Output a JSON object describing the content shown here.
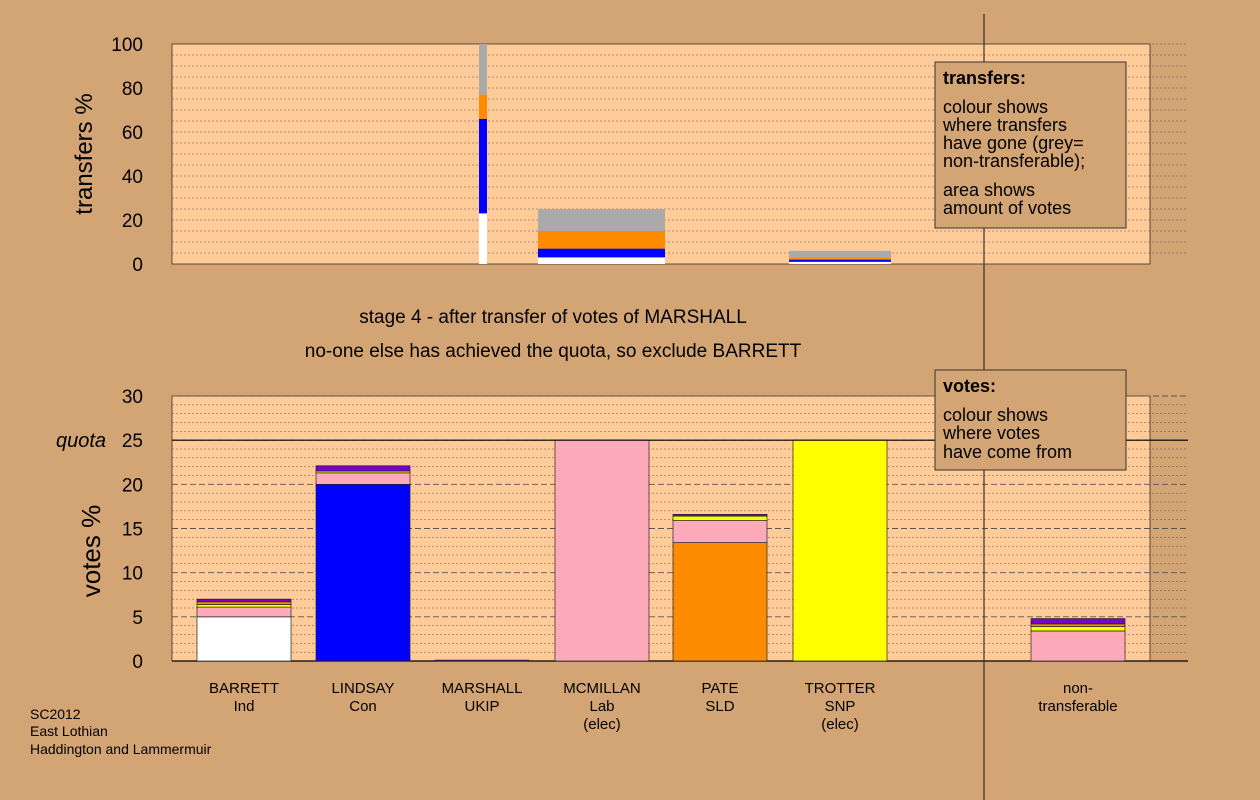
{
  "colors": {
    "background": "#d4a574",
    "plot_bg": "#ffcc99",
    "grey": "#aaaaaa",
    "orange": "#ff8c00",
    "blue": "#0000ff",
    "white": "#ffffff",
    "pink": "#ffaabb",
    "yellow": "#ffff00",
    "purple": "#7700cc"
  },
  "stage_title": "stage 4 - after transfer of votes of MARSHALL",
  "stage_subtitle": "no-one else has achieved the quota, so exclude BARRETT",
  "footer": [
    "SC2012",
    "East Lothian",
    "Haddington and Lammermuir"
  ],
  "chart_data": [
    {
      "type": "bar",
      "stacked": true,
      "ylabel": "transfers %",
      "ylim": [
        0,
        100
      ],
      "yticks": [
        0,
        20,
        40,
        60,
        80,
        100
      ],
      "legend": {
        "title": "transfers:",
        "lines": [
          "colour shows",
          "where transfers",
          "have gone (grey=",
          "non-transferable);",
          "area shows",
          "amount of votes"
        ]
      },
      "bars": [
        {
          "name": "BARRETT",
          "from": 0,
          "to": 23,
          "color": "#ffffff"
        },
        {
          "name": "LINDSAY",
          "from": 23,
          "to": 66,
          "color": "#0000ff"
        },
        {
          "name": "PATE",
          "from": 66,
          "to": 77,
          "color": "#ff8c00"
        },
        {
          "name": "non-transferable",
          "from": 77,
          "to": 100,
          "color": "#aaaaaa"
        },
        {
          "name": "BARRETT",
          "from": 0,
          "to": 3,
          "color": "#ffffff"
        },
        {
          "name": "LINDSAY",
          "from": 3,
          "to": 7,
          "color": "#0000ff"
        },
        {
          "name": "PATE",
          "from": 7,
          "to": 15,
          "color": "#ff8c00"
        },
        {
          "name": "non-transferable",
          "from": 15,
          "to": 25,
          "color": "#aaaaaa"
        },
        {
          "name": "BARRETT",
          "from": 0,
          "to": 1,
          "color": "#ffffff"
        },
        {
          "name": "LINDSAY",
          "from": 1,
          "to": 2,
          "color": "#0000ff"
        },
        {
          "name": "PATE",
          "from": 2,
          "to": 3,
          "color": "#ff8c00"
        },
        {
          "name": "non-transferable",
          "from": 3,
          "to": 6,
          "color": "#aaaaaa"
        }
      ]
    },
    {
      "type": "bar",
      "stacked": true,
      "ylabel": "votes %",
      "ylim": [
        0,
        30
      ],
      "yticks": [
        0,
        5,
        10,
        15,
        20,
        25,
        30
      ],
      "quota": 25,
      "quota_label": "quota",
      "legend": {
        "title": "votes:",
        "lines": [
          "colour shows",
          "where votes",
          "have come from"
        ]
      },
      "categories": [
        {
          "name": "BARRETT",
          "party": "Ind",
          "note": ""
        },
        {
          "name": "LINDSAY",
          "party": "Con",
          "note": ""
        },
        {
          "name": "MARSHALL",
          "party": "UKIP",
          "note": ""
        },
        {
          "name": "MCMILLAN",
          "party": "Lab",
          "note": "(elec)"
        },
        {
          "name": "PATE",
          "party": "SLD",
          "note": ""
        },
        {
          "name": "TROTTER",
          "party": "SNP",
          "note": "(elec)"
        },
        {
          "name": "non-",
          "party": "transferable",
          "note": ""
        }
      ],
      "stacks": [
        [
          {
            "value": 5.0,
            "color": "#ffffff"
          },
          {
            "value": 1.1,
            "color": "#ffaabb"
          },
          {
            "value": 0.3,
            "color": "#ffff00"
          },
          {
            "value": 0.3,
            "color": "#ff8c00"
          },
          {
            "value": 0.3,
            "color": "#7700cc"
          }
        ],
        [
          {
            "value": 20.0,
            "color": "#0000ff"
          },
          {
            "value": 1.3,
            "color": "#ffaabb"
          },
          {
            "value": 0.2,
            "color": "#ffff00"
          },
          {
            "value": 0.6,
            "color": "#7700cc"
          }
        ],
        [
          {
            "value": 0.1,
            "color": "#7700cc"
          }
        ],
        [
          {
            "value": 25.0,
            "color": "#ffaabb"
          }
        ],
        [
          {
            "value": 13.4,
            "color": "#ff8c00"
          },
          {
            "value": 2.5,
            "color": "#ffaabb"
          },
          {
            "value": 0.5,
            "color": "#ffff00"
          },
          {
            "value": 0.2,
            "color": "#7700cc"
          }
        ],
        [
          {
            "value": 25.0,
            "color": "#ffff00"
          }
        ],
        [
          {
            "value": 3.4,
            "color": "#ffaabb"
          },
          {
            "value": 0.5,
            "color": "#ffff00"
          },
          {
            "value": 0.3,
            "color": "#ff8c00"
          },
          {
            "value": 0.6,
            "color": "#7700cc"
          }
        ]
      ]
    }
  ]
}
